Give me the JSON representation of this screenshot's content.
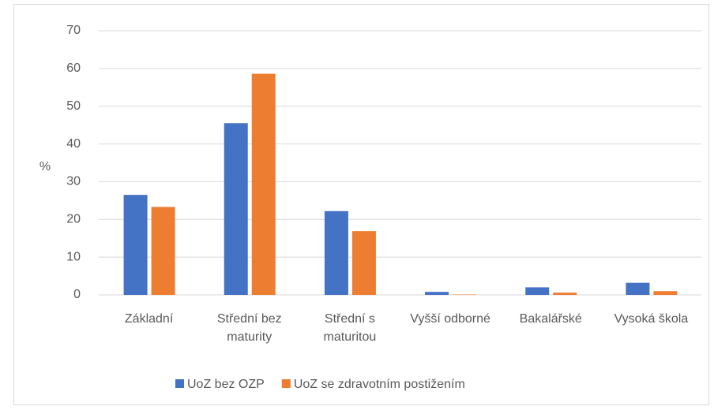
{
  "chart_data": {
    "type": "bar",
    "y_label": "%",
    "categories": [
      "Základní",
      "Střední bez maturity",
      "Střední s maturitou",
      "Vyšší odborné",
      "Bakalářské",
      "Vysoká škola"
    ],
    "series": [
      {
        "name": "UoZ bez OZP",
        "color": "#4472c4",
        "values": [
          26.5,
          45.5,
          22.2,
          0.8,
          2.0,
          3.2
        ]
      },
      {
        "name": "UoZ se zdravotním postižením",
        "color": "#ed7d31",
        "values": [
          23.3,
          58.6,
          16.9,
          0.1,
          0.6,
          1.0
        ]
      }
    ],
    "ylim": [
      0,
      70
    ],
    "yticks": [
      0,
      10,
      20,
      30,
      40,
      50,
      60,
      70
    ],
    "grid": true,
    "legend": "bottom"
  }
}
